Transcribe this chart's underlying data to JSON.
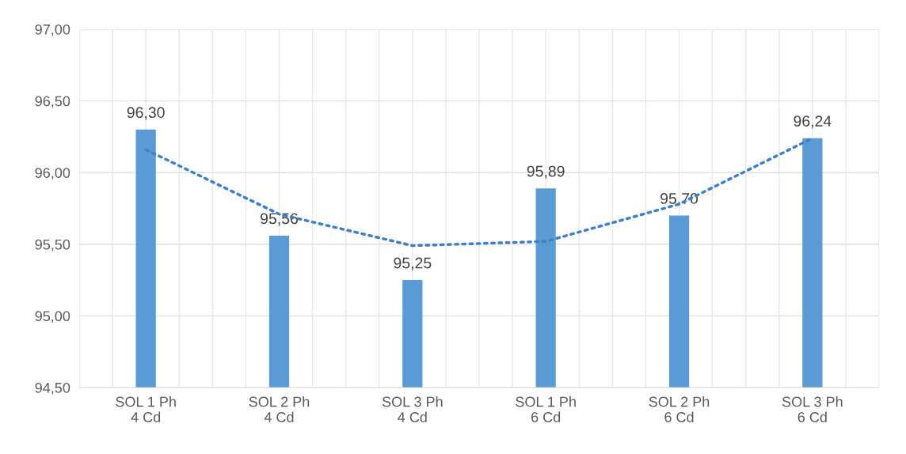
{
  "chart_data": {
    "type": "bar",
    "categories": [
      "SOL 1 Ph\n4 Cd",
      "SOL 2 Ph\n4 Cd",
      "SOL 3 Ph\n4 Cd",
      "SOL 1 Ph\n6 Cd",
      "SOL 2 Ph\n6 Cd",
      "SOL 3 Ph\n6 Cd"
    ],
    "series": [
      {
        "color": "#5b9bd5",
        "values": [
          96.3,
          95.56,
          95.25,
          95.89,
          95.7,
          96.24
        ],
        "value_labels": [
          "96,30",
          "95,56",
          "95,25",
          "95,89",
          "95,70",
          "96,24"
        ]
      },
      {
        "type": "line",
        "color": "#3f7fc4",
        "line_style": "dotted",
        "marker": "none",
        "values": [
          96.16,
          95.71,
          95.49,
          95.52,
          95.78,
          96.24
        ]
      }
    ],
    "ylim": [
      94.5,
      97.0
    ],
    "yticks": [
      {
        "value": 94.5,
        "label": "94,50"
      },
      {
        "value": 95.0,
        "label": "95,00"
      },
      {
        "value": 95.5,
        "label": "95,50"
      },
      {
        "value": 96.0,
        "label": "96,00"
      },
      {
        "value": 96.5,
        "label": "96,50"
      },
      {
        "value": 97.0,
        "label": "97,00"
      }
    ],
    "grid": true,
    "legend": false
  }
}
